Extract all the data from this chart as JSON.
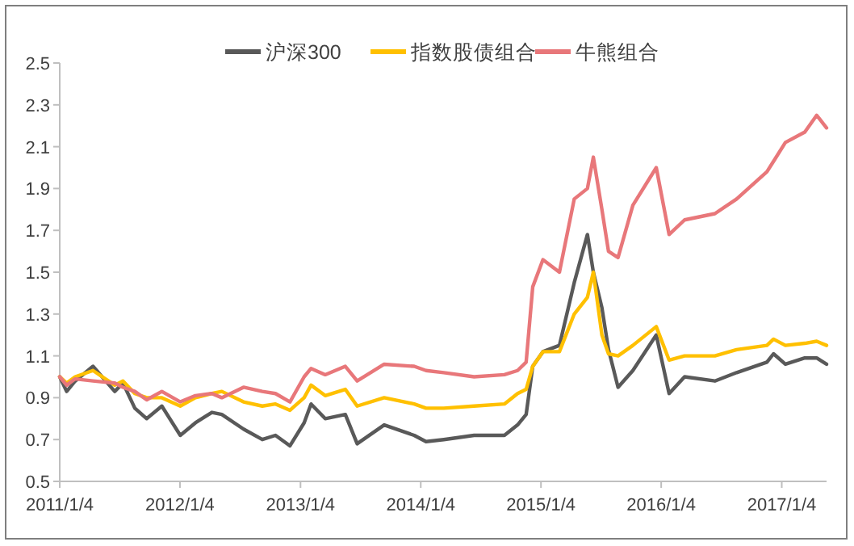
{
  "chart_data": {
    "type": "line",
    "legend": "top",
    "marker": "none",
    "line_style": "solid",
    "grid": false,
    "xlim": [
      "2011-01-04",
      "2017-05-20"
    ],
    "xticks": [
      {
        "value": "2011-01-04",
        "label": "2011/1/4"
      },
      {
        "value": "2012-01-04",
        "label": "2012/1/4"
      },
      {
        "value": "2013-01-04",
        "label": "2013/1/4"
      },
      {
        "value": "2014-01-04",
        "label": "2014/1/4"
      },
      {
        "value": "2015-01-04",
        "label": "2015/1/4"
      },
      {
        "value": "2016-01-04",
        "label": "2016/1/4"
      },
      {
        "value": "2017-01-04",
        "label": "2017/1/4"
      }
    ],
    "ylim": [
      0.5,
      2.5
    ],
    "yticks": [
      0.5,
      0.7,
      0.9,
      1.1,
      1.3,
      1.5,
      1.7,
      1.9,
      2.1,
      2.3,
      2.5
    ],
    "x": [
      "2011-01-04",
      "2011-01-25",
      "2011-02-20",
      "2011-04-15",
      "2011-06-20",
      "2011-07-15",
      "2011-08-20",
      "2011-09-25",
      "2011-11-10",
      "2012-01-05",
      "2012-02-20",
      "2012-04-10",
      "2012-05-10",
      "2012-07-15",
      "2012-09-10",
      "2012-10-20",
      "2012-12-03",
      "2013-01-15",
      "2013-02-05",
      "2013-03-20",
      "2013-05-20",
      "2013-06-25",
      "2013-09-15",
      "2013-12-15",
      "2014-01-20",
      "2014-03-15",
      "2014-06-15",
      "2014-09-15",
      "2014-10-25",
      "2014-11-20",
      "2014-12-10",
      "2015-01-10",
      "2015-03-01",
      "2015-04-15",
      "2015-05-25",
      "2015-06-12",
      "2015-07-08",
      "2015-07-28",
      "2015-08-26",
      "2015-10-10",
      "2015-12-20",
      "2016-01-28",
      "2016-03-15",
      "2016-06-15",
      "2016-08-20",
      "2016-11-20",
      "2016-12-10",
      "2017-01-15",
      "2017-03-15",
      "2017-04-20",
      "2017-05-20"
    ],
    "series": [
      {
        "name": "沪深300",
        "color": "#595959",
        "values": [
          1.0,
          0.93,
          0.98,
          1.05,
          0.93,
          0.97,
          0.85,
          0.8,
          0.86,
          0.72,
          0.78,
          0.83,
          0.82,
          0.75,
          0.7,
          0.72,
          0.67,
          0.78,
          0.87,
          0.8,
          0.82,
          0.68,
          0.77,
          0.72,
          0.69,
          0.7,
          0.72,
          0.72,
          0.77,
          0.82,
          1.05,
          1.12,
          1.15,
          1.45,
          1.68,
          1.5,
          1.33,
          1.13,
          0.95,
          1.03,
          1.2,
          0.92,
          1.0,
          0.98,
          1.02,
          1.07,
          1.11,
          1.06,
          1.09,
          1.09,
          1.06
        ]
      },
      {
        "name": "指数股债组合",
        "color": "#ffc000",
        "values": [
          1.0,
          0.97,
          1.0,
          1.03,
          0.96,
          0.98,
          0.92,
          0.9,
          0.9,
          0.86,
          0.9,
          0.92,
          0.93,
          0.88,
          0.86,
          0.87,
          0.84,
          0.9,
          0.96,
          0.91,
          0.94,
          0.86,
          0.9,
          0.87,
          0.85,
          0.85,
          0.86,
          0.87,
          0.92,
          0.94,
          1.05,
          1.12,
          1.12,
          1.3,
          1.38,
          1.5,
          1.2,
          1.11,
          1.1,
          1.15,
          1.24,
          1.08,
          1.1,
          1.1,
          1.13,
          1.15,
          1.18,
          1.15,
          1.16,
          1.17,
          1.15
        ]
      },
      {
        "name": "牛熊组合",
        "color": "#e8777a",
        "values": [
          1.0,
          0.96,
          0.99,
          0.98,
          0.97,
          0.95,
          0.93,
          0.89,
          0.93,
          0.88,
          0.91,
          0.92,
          0.9,
          0.95,
          0.93,
          0.92,
          0.88,
          1.0,
          1.04,
          1.01,
          1.05,
          0.98,
          1.06,
          1.05,
          1.03,
          1.02,
          1.0,
          1.01,
          1.03,
          1.07,
          1.43,
          1.56,
          1.5,
          1.85,
          1.9,
          2.05,
          1.8,
          1.6,
          1.57,
          1.82,
          2.0,
          1.68,
          1.75,
          1.78,
          1.85,
          1.98,
          2.03,
          2.12,
          2.17,
          2.25,
          2.19
        ]
      }
    ]
  }
}
